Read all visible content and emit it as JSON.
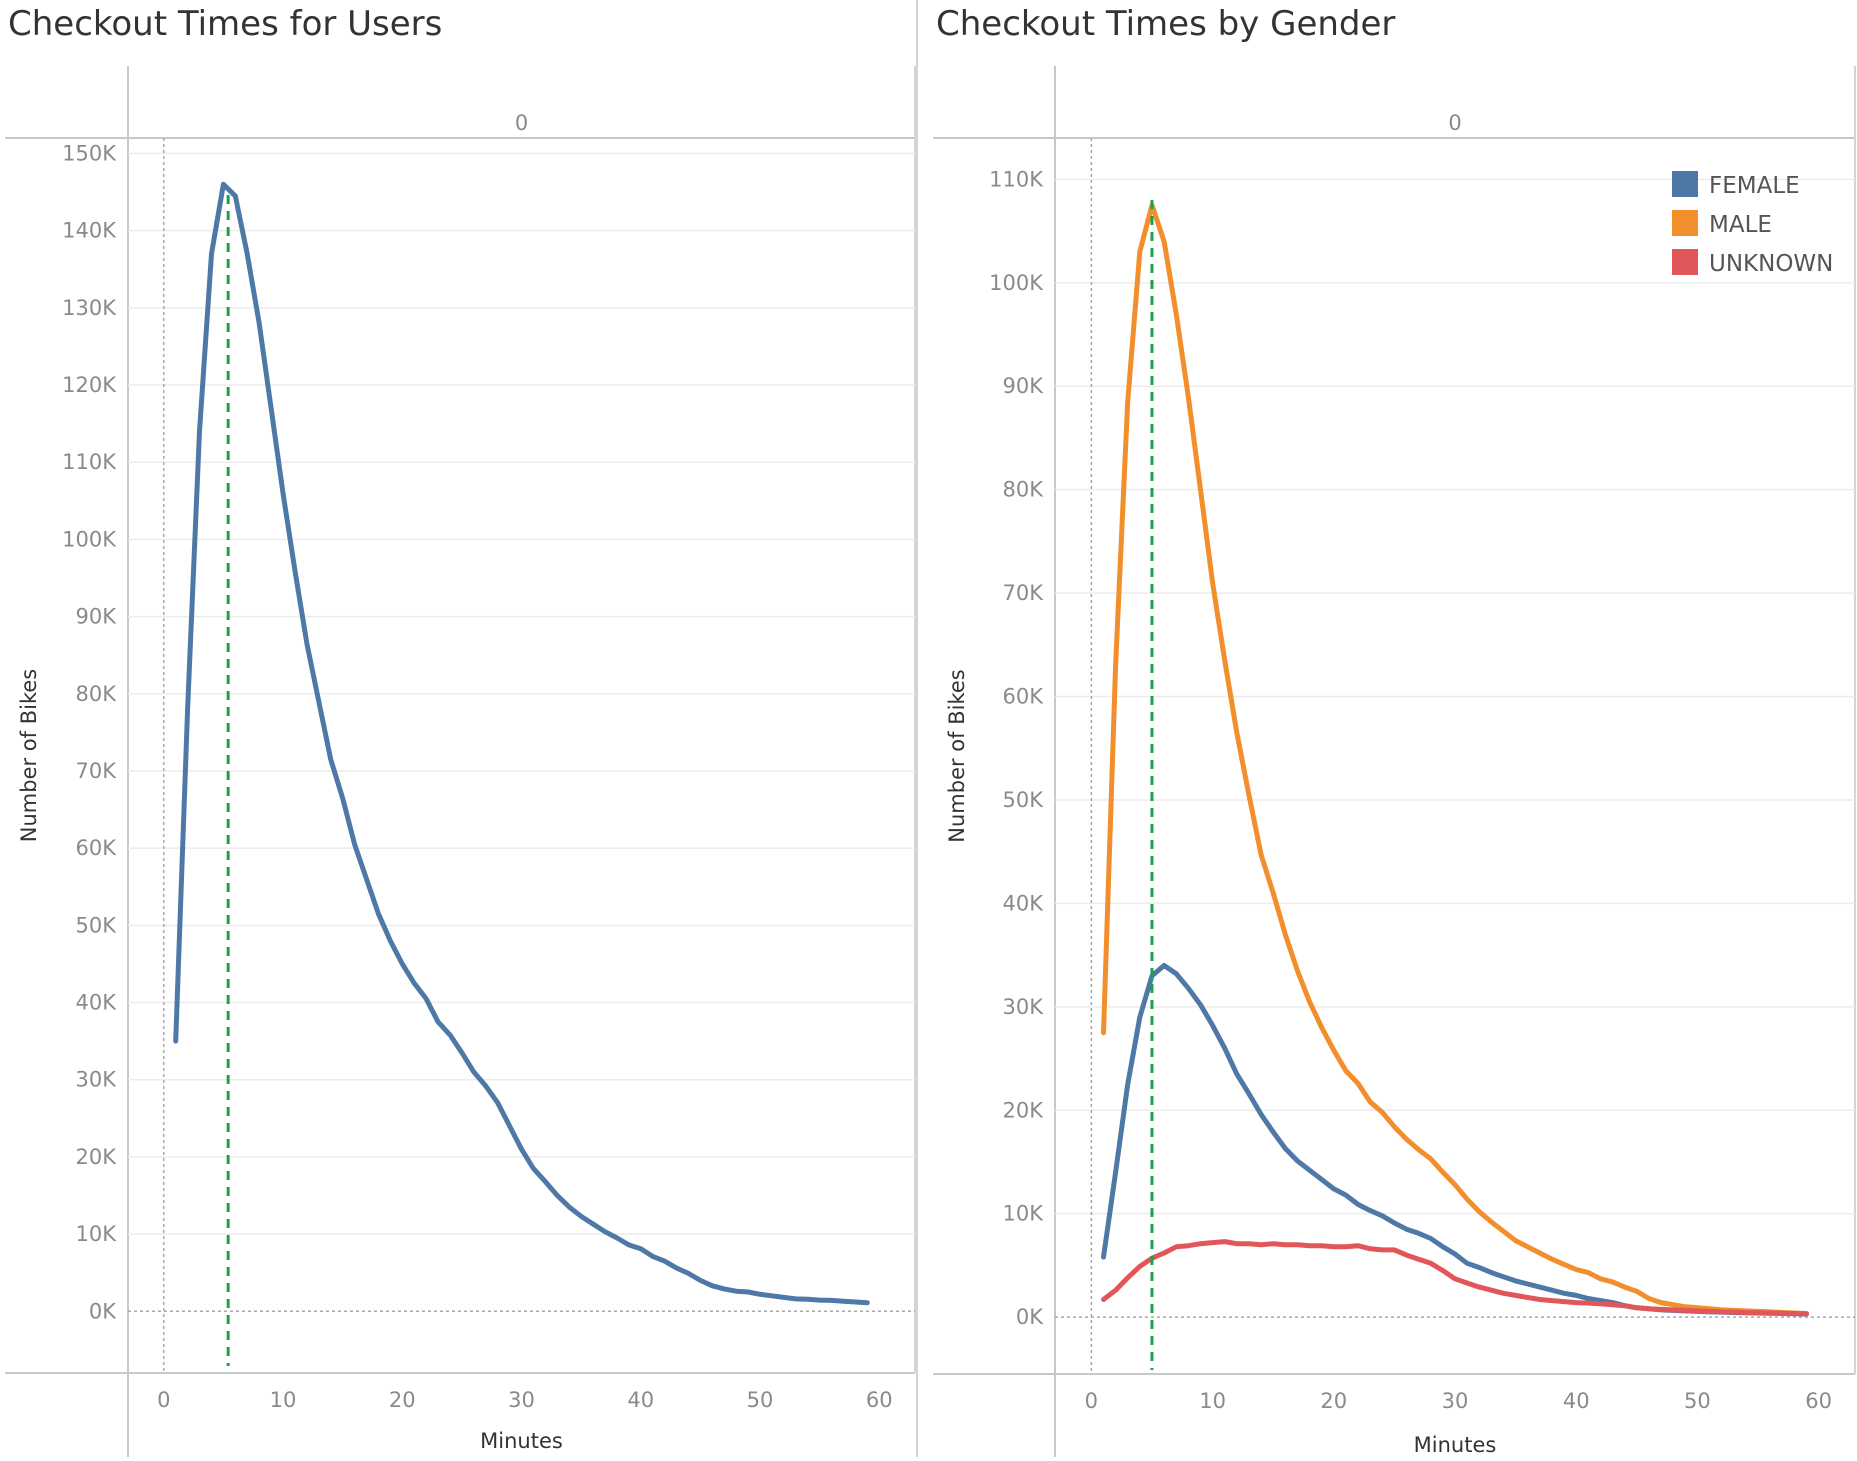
{
  "chart_data": [
    {
      "type": "line",
      "title": "Checkout Times for Users",
      "xlabel": "Minutes",
      "ylabel": "Number of Bikes",
      "header": "0",
      "xlim": [
        -3,
        63
      ],
      "ylim": [
        -8000,
        152000
      ],
      "xticks": [
        0,
        10,
        20,
        30,
        40,
        50,
        60
      ],
      "xtick_labels": [
        "0",
        "10",
        "20",
        "30",
        "40",
        "50",
        "60"
      ],
      "yticks": [
        0,
        10000,
        20000,
        30000,
        40000,
        50000,
        60000,
        70000,
        80000,
        90000,
        100000,
        110000,
        120000,
        130000,
        140000,
        150000
      ],
      "ytick_labels": [
        "0K",
        "10K",
        "20K",
        "30K",
        "40K",
        "50K",
        "60K",
        "70K",
        "80K",
        "90K",
        "100K",
        "110K",
        "120K",
        "130K",
        "140K",
        "150K"
      ],
      "grid": true,
      "reference_line": {
        "x": 5.4,
        "color": "#1aa34a"
      },
      "series": [
        {
          "color": "#4e79a7",
          "x": [
            1,
            2,
            3,
            4,
            5,
            6,
            7,
            8,
            9,
            10,
            11,
            12,
            13,
            14,
            15,
            16,
            17,
            18,
            19,
            20,
            21,
            22,
            23,
            24,
            25,
            26,
            27,
            28,
            29,
            30,
            31,
            32,
            33,
            34,
            35,
            36,
            37,
            38,
            39,
            40,
            41,
            42,
            43,
            44,
            45,
            46,
            47,
            48,
            49,
            50,
            51,
            52,
            53,
            54,
            55,
            56,
            57,
            58,
            59
          ],
          "values": [
            35000,
            78000,
            114000,
            137000,
            146000,
            144500,
            137000,
            128000,
            117000,
            106000,
            96000,
            86500,
            79000,
            71500,
            66500,
            60500,
            56000,
            51500,
            48000,
            45000,
            42500,
            40500,
            37500,
            35800,
            33500,
            31000,
            29200,
            27000,
            24000,
            21000,
            18500,
            16800,
            15000,
            13500,
            12300,
            11300,
            10300,
            9500,
            8600,
            8100,
            7100,
            6500,
            5600,
            4900,
            4000,
            3300,
            2900,
            2600,
            2500,
            2200,
            2000,
            1800,
            1600,
            1550,
            1450,
            1400,
            1300,
            1200,
            1100
          ]
        }
      ]
    },
    {
      "type": "line",
      "title": "Checkout Times by Gender",
      "xlabel": "Minutes",
      "ylabel": "Number of Bikes",
      "header": "0",
      "xlim": [
        -3,
        63
      ],
      "ylim": [
        -5500,
        114000
      ],
      "xticks": [
        0,
        10,
        20,
        30,
        40,
        50,
        60
      ],
      "xtick_labels": [
        "0",
        "10",
        "20",
        "30",
        "40",
        "50",
        "60"
      ],
      "yticks": [
        0,
        10000,
        20000,
        30000,
        40000,
        50000,
        60000,
        70000,
        80000,
        90000,
        100000,
        110000
      ],
      "ytick_labels": [
        "0K",
        "10K",
        "20K",
        "30K",
        "40K",
        "50K",
        "60K",
        "70K",
        "80K",
        "90K",
        "100K",
        "110K"
      ],
      "grid": true,
      "legend_position": "top-right",
      "reference_line": {
        "x": 5,
        "color": "#1aa34a"
      },
      "series": [
        {
          "name": "FEMALE",
          "color": "#4e79a7",
          "x": [
            1,
            2,
            3,
            4,
            5,
            6,
            7,
            8,
            9,
            10,
            11,
            12,
            13,
            14,
            15,
            16,
            17,
            18,
            19,
            20,
            21,
            22,
            23,
            24,
            25,
            26,
            27,
            28,
            29,
            30,
            31,
            32,
            33,
            34,
            35,
            36,
            37,
            38,
            39,
            40,
            41,
            42,
            43,
            44,
            45,
            46,
            47,
            48,
            49,
            50,
            51,
            52,
            53,
            54,
            55,
            56,
            57,
            58,
            59
          ],
          "values": [
            5800,
            14000,
            22500,
            29000,
            33000,
            34000,
            33200,
            31800,
            30200,
            28200,
            26000,
            23500,
            21600,
            19600,
            17900,
            16300,
            15100,
            14200,
            13300,
            12400,
            11800,
            10900,
            10300,
            9800,
            9100,
            8500,
            8100,
            7600,
            6800,
            6100,
            5200,
            4800,
            4300,
            3900,
            3500,
            3200,
            2900,
            2600,
            2300,
            2100,
            1800,
            1600,
            1400,
            1100,
            900,
            800,
            700,
            650,
            600,
            550,
            500,
            480,
            450,
            420,
            400,
            380,
            350,
            330,
            300
          ]
        },
        {
          "name": "MALE",
          "color": "#f28e2b",
          "x": [
            1,
            2,
            3,
            4,
            5,
            6,
            7,
            8,
            9,
            10,
            11,
            12,
            13,
            14,
            15,
            16,
            17,
            18,
            19,
            20,
            21,
            22,
            23,
            24,
            25,
            26,
            27,
            28,
            29,
            30,
            31,
            32,
            33,
            34,
            35,
            36,
            37,
            38,
            39,
            40,
            41,
            42,
            43,
            44,
            45,
            46,
            47,
            48,
            49,
            50,
            51,
            52,
            53,
            54,
            55,
            56,
            57,
            58,
            59
          ],
          "values": [
            27500,
            63000,
            88500,
            103000,
            107500,
            104000,
            97000,
            89000,
            80000,
            71000,
            63500,
            56500,
            50500,
            44700,
            41000,
            37000,
            33500,
            30500,
            28000,
            25800,
            23800,
            22600,
            20800,
            19800,
            18400,
            17200,
            16200,
            15300,
            14000,
            12800,
            11400,
            10200,
            9200,
            8300,
            7400,
            6800,
            6200,
            5600,
            5100,
            4600,
            4300,
            3700,
            3400,
            2900,
            2500,
            1800,
            1400,
            1200,
            1000,
            900,
            800,
            700,
            650,
            600,
            550,
            500,
            450,
            400,
            350
          ]
        },
        {
          "name": "UNKNOWN",
          "color": "#e15759",
          "x": [
            1,
            2,
            3,
            4,
            5,
            6,
            7,
            8,
            9,
            10,
            11,
            12,
            13,
            14,
            15,
            16,
            17,
            18,
            19,
            20,
            21,
            22,
            23,
            24,
            25,
            26,
            27,
            28,
            29,
            30,
            31,
            32,
            33,
            34,
            35,
            36,
            37,
            38,
            39,
            40,
            41,
            42,
            43,
            44,
            45,
            46,
            47,
            48,
            49,
            50,
            51,
            52,
            53,
            54,
            55,
            56,
            57,
            58,
            59
          ],
          "values": [
            1700,
            2600,
            3800,
            4900,
            5700,
            6200,
            6800,
            6900,
            7100,
            7200,
            7300,
            7100,
            7100,
            7000,
            7100,
            7000,
            7000,
            6900,
            6900,
            6800,
            6800,
            6900,
            6600,
            6500,
            6500,
            6000,
            5600,
            5200,
            4500,
            3700,
            3300,
            2900,
            2600,
            2300,
            2100,
            1900,
            1700,
            1600,
            1500,
            1400,
            1350,
            1300,
            1200,
            1100,
            900,
            800,
            750,
            700,
            650,
            600,
            550,
            500,
            480,
            450,
            420,
            400,
            380,
            350,
            330
          ]
        }
      ]
    }
  ]
}
